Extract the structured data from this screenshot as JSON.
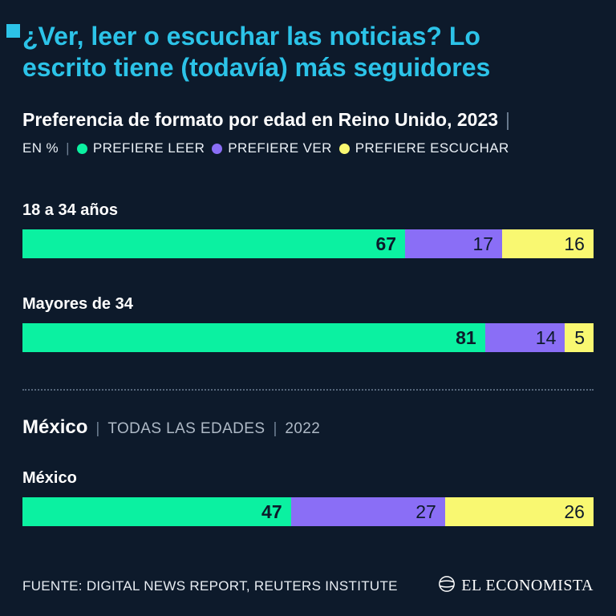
{
  "colors": {
    "background": "#0d1a2b",
    "accent_cyan": "#2cc3e8",
    "bar_value_text": "#0d1a2b"
  },
  "header": {
    "title_lines": [
      "¿Ver, leer o escuchar las noticias? Lo",
      "escrito tiene (todavía) más seguidores"
    ],
    "subtitle": "Preferencia de formato por edad en Reino Unido, 2023",
    "subtitle_separator": "|"
  },
  "legend": {
    "prefix": "EN %",
    "separator": "|"
  },
  "mexico_section": {
    "title": "México",
    "separator1": "|",
    "meta_ages": "TODAS LAS EDADES",
    "separator2": "|",
    "meta_year": "2022"
  },
  "footer": {
    "source": "FUENTE: DIGITAL NEWS REPORT, REUTERS INSTITUTE",
    "brand": "EL ECONOMISTA"
  },
  "chart_data": {
    "type": "bar",
    "stacked": true,
    "orientation": "horizontal",
    "unit": "%",
    "title": "Preferencia de formato por edad en Reino Unido, 2023",
    "xlim": [
      0,
      100
    ],
    "series": [
      {
        "key": "leer",
        "name": "PREFIERE LEER",
        "color": "#0bf1a1"
      },
      {
        "key": "ver",
        "name": "PREFIERE VER",
        "color": "#8a6ef6"
      },
      {
        "key": "escuchar",
        "name": "PREFIERE ESCUCHAR",
        "color": "#f9f871"
      }
    ],
    "groups": [
      {
        "category": "18 a 34 años",
        "values": [
          67,
          17,
          16
        ]
      },
      {
        "category": "Mayores de 34",
        "values": [
          81,
          14,
          5
        ]
      },
      {
        "category": "México",
        "values": [
          47,
          27,
          26
        ]
      }
    ]
  }
}
